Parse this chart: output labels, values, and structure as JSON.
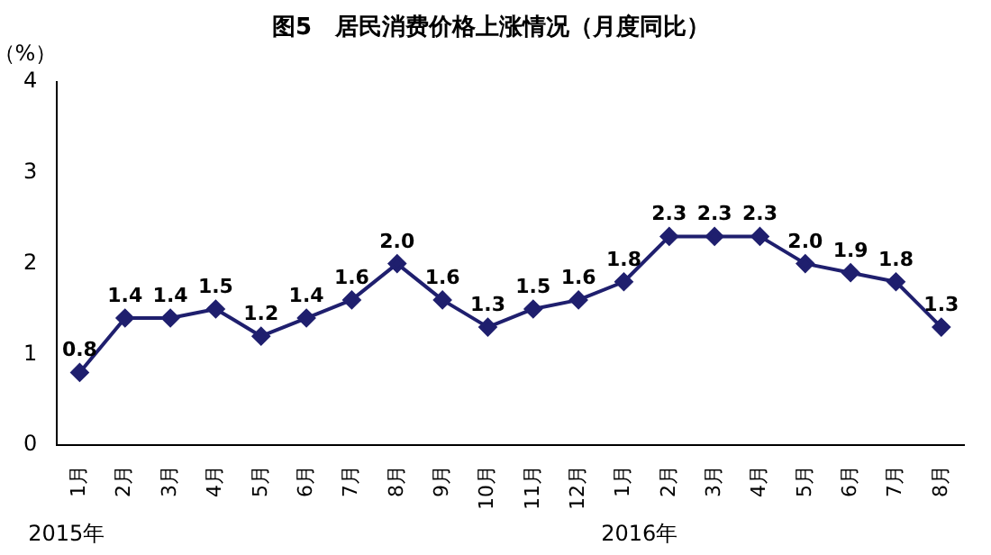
{
  "chart_data": {
    "type": "line",
    "title": "图5　居民消费价格上涨情况（月度同比）",
    "ylabel": "（%）",
    "categories": [
      "1月",
      "2月",
      "3月",
      "4月",
      "5月",
      "6月",
      "7月",
      "8月",
      "9月",
      "10月",
      "11月",
      "12月",
      "1月",
      "2月",
      "3月",
      "4月",
      "5月",
      "6月",
      "7月",
      "8月"
    ],
    "series": [
      {
        "color": "#1f1f6e",
        "values": [
          0.8,
          1.4,
          1.4,
          1.5,
          1.2,
          1.4,
          1.6,
          2.0,
          1.6,
          1.3,
          1.5,
          1.6,
          1.8,
          2.3,
          2.3,
          2.3,
          2.0,
          1.9,
          1.8,
          1.3
        ],
        "value_labels": [
          "0.8",
          "1.4",
          "1.4",
          "1.5",
          "1.2",
          "1.4",
          "1.6",
          "2.0",
          "1.6",
          "1.3",
          "1.5",
          "1.6",
          "1.8",
          "2.3",
          "2.3",
          "2.3",
          "2.0",
          "1.9",
          "1.8",
          "1.3"
        ]
      }
    ],
    "ylim": [
      0,
      4
    ],
    "yticks": [
      0,
      1,
      2,
      3,
      4
    ],
    "grid": false,
    "legend": false,
    "marker": "diamond",
    "line_style": "solid",
    "annotations": [
      "2015年",
      "2016年"
    ]
  }
}
